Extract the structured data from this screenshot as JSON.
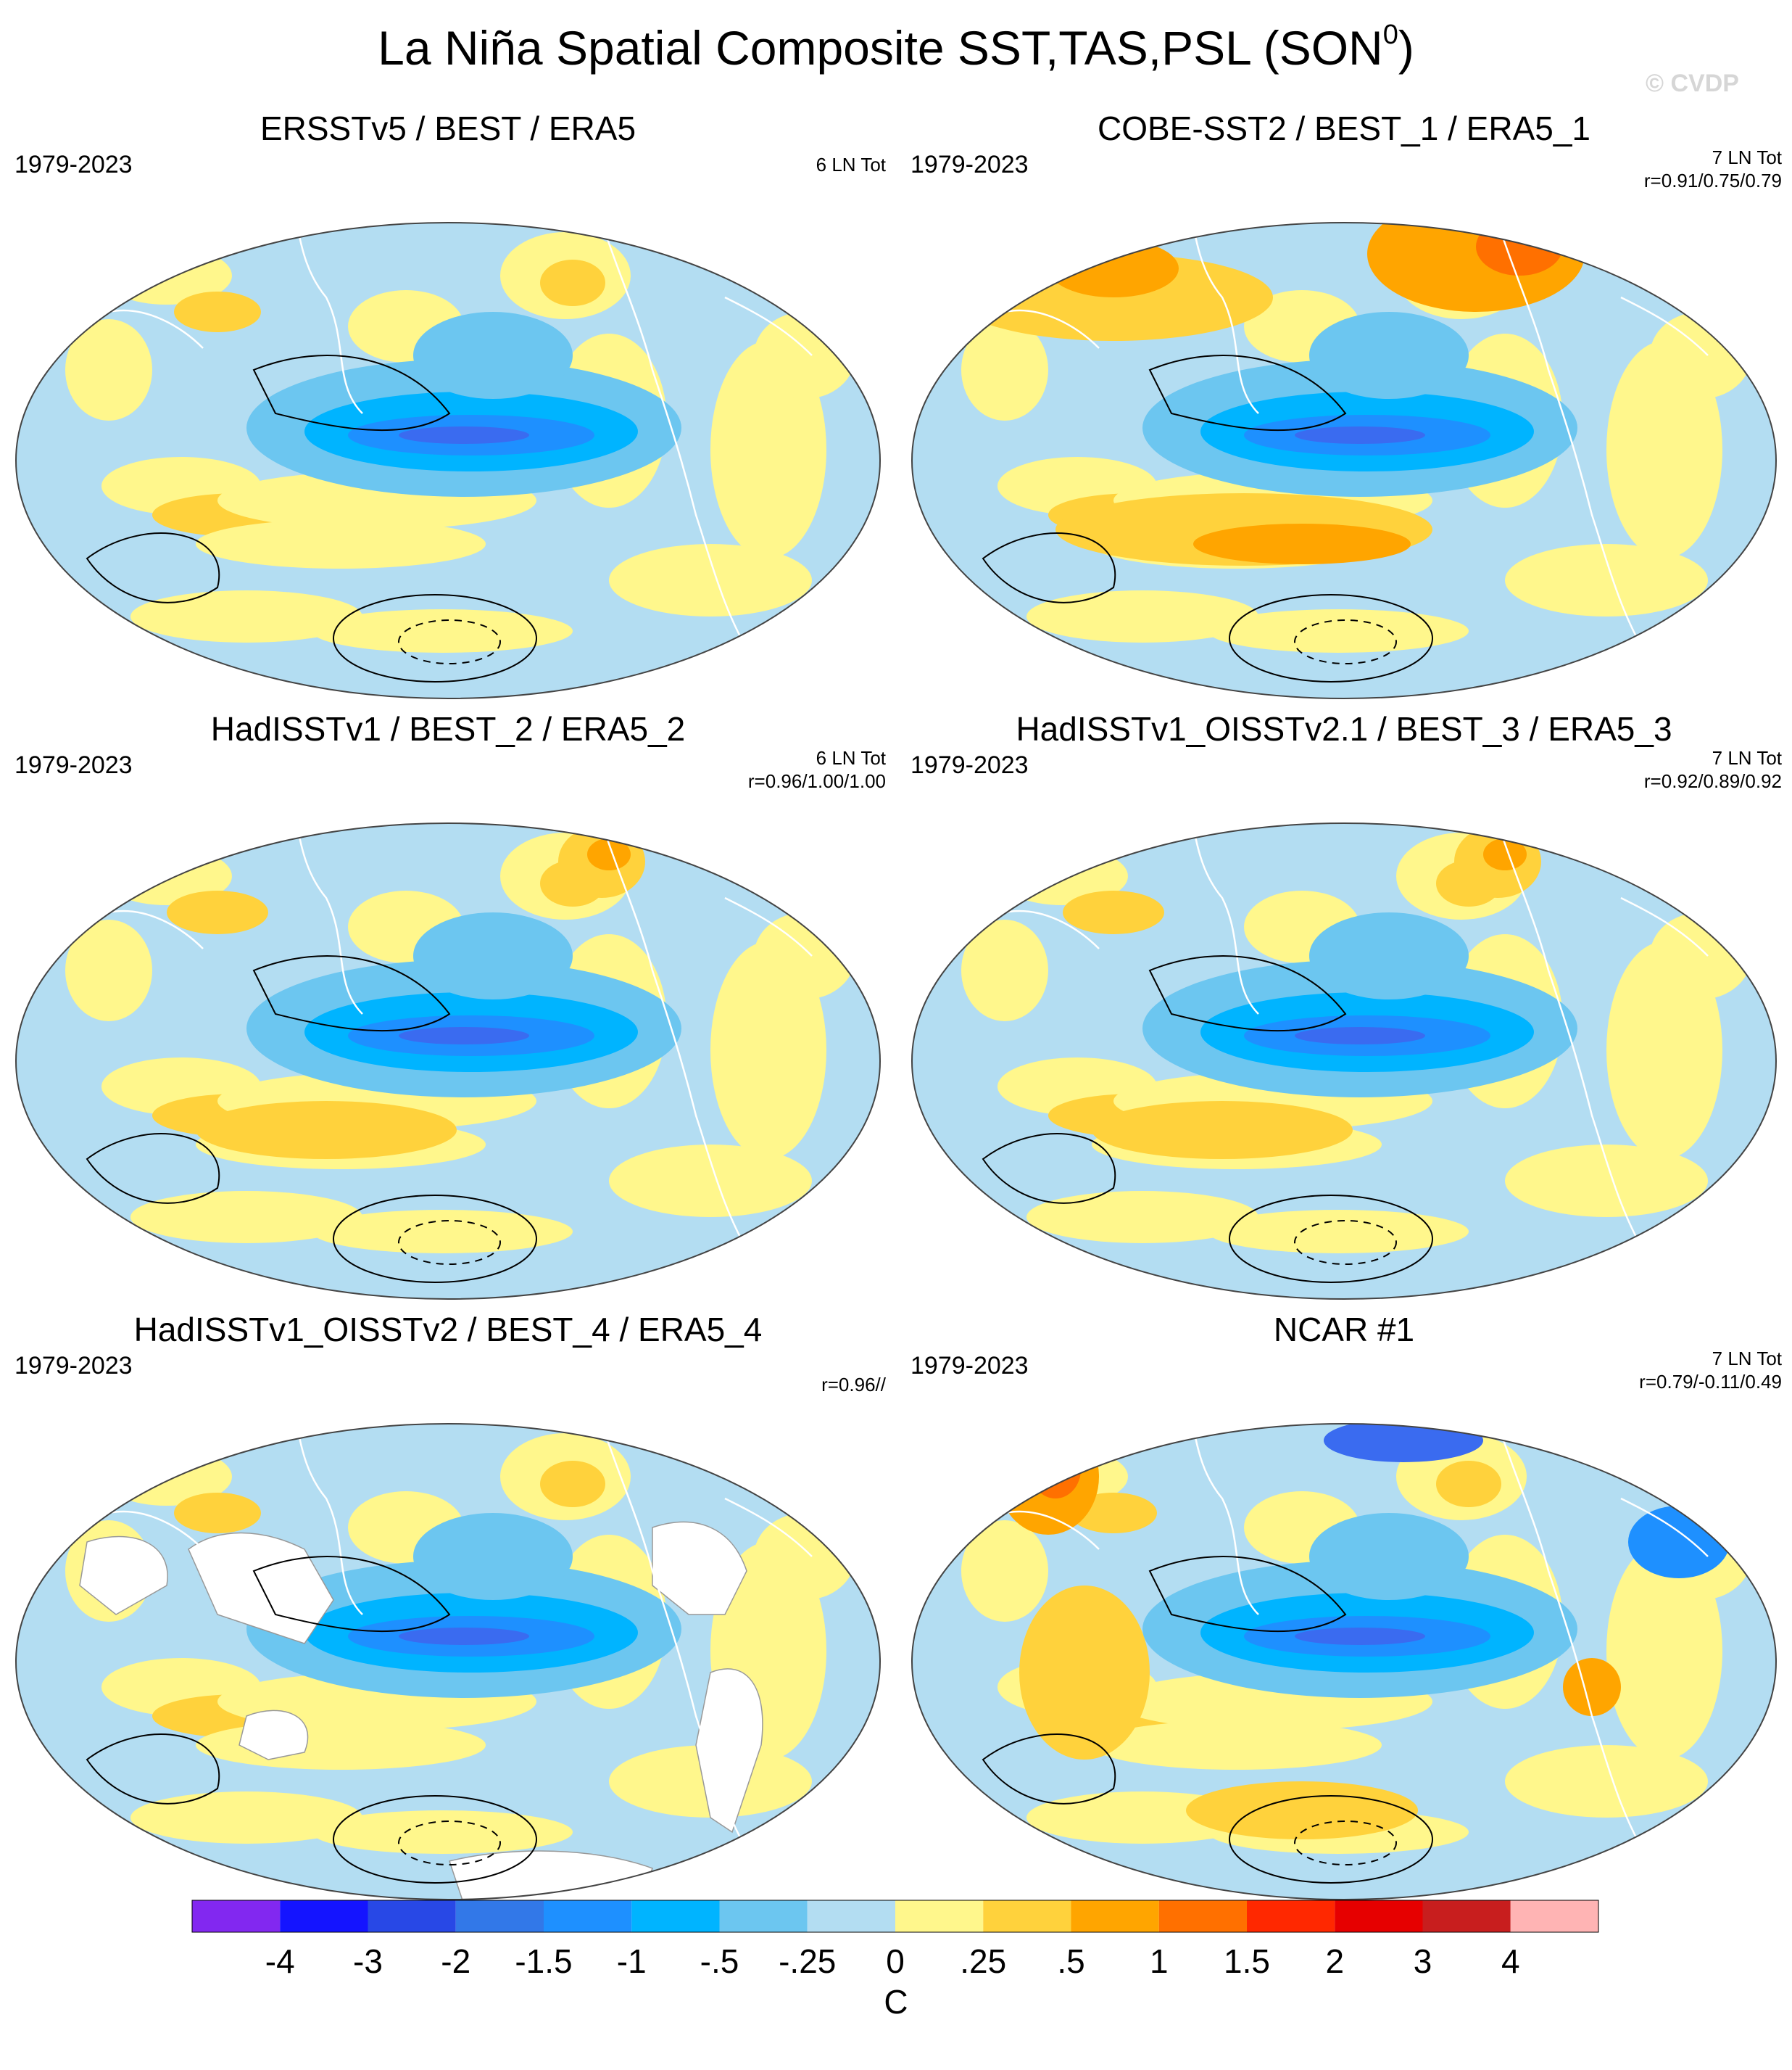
{
  "title": {
    "main": "La Niña Spatial Composite SST,TAS,PSL (SON",
    "sup": "0",
    "close": ")"
  },
  "watermark": "© CVDP",
  "panels": [
    {
      "title": "ERSSTv5 / BEST / ERA5",
      "period": "1979-2023",
      "count": "6 LN Tot",
      "corr": "",
      "land_masked": false
    },
    {
      "title": "COBE-SST2 / BEST_1 / ERA5_1",
      "period": "1979-2023",
      "count": "7 LN Tot",
      "corr": "r=0.91/0.75/0.79",
      "land_masked": false
    },
    {
      "title": "HadISSTv1 / BEST_2 / ERA5_2",
      "period": "1979-2023",
      "count": "6 LN Tot",
      "corr": "r=0.96/1.00/1.00",
      "land_masked": false
    },
    {
      "title": "HadISSTv1_OISSTv2.1 / BEST_3 / ERA5_3",
      "period": "1979-2023",
      "count": "7 LN Tot",
      "corr": "r=0.92/0.89/0.92",
      "land_masked": false
    },
    {
      "title": "HadISSTv1_OISSTv2 / BEST_4 / ERA5_4",
      "period": "1979-2023",
      "count": "",
      "corr": "r=0.96//",
      "land_masked": true
    },
    {
      "title": "NCAR #1",
      "period": "1979-2023",
      "count": "7 LN Tot",
      "corr": "r=0.79/-0.11/0.49",
      "land_masked": false
    }
  ],
  "colors": {
    "ocean_base": "#b3ddf2",
    "yellow": "#fff78c",
    "gold": "#ffd23c",
    "orange": "#ffa500",
    "deep_orange": "#ff7000",
    "light_blue": "#6cc6f0",
    "mid_blue": "#00b4ff",
    "blue": "#1e90ff",
    "dark_blue": "#3a6bf0",
    "navy": "#2d4ce6",
    "land": "#ffffff"
  },
  "chart_data": {
    "type": "colorbar",
    "unit": "C",
    "tick_labels": [
      "-4",
      "-3",
      "-2",
      "-1.5",
      "-1",
      "-.5",
      "-.25",
      "0",
      ".25",
      ".5",
      "1",
      "1.5",
      "2",
      "3",
      "4"
    ],
    "levels": [
      -4,
      -3,
      -2,
      -1.5,
      -1,
      -0.5,
      -0.25,
      0,
      0.25,
      0.5,
      1,
      1.5,
      2,
      3,
      4
    ],
    "colors": [
      "#8228f0",
      "#1414ff",
      "#2848e6",
      "#3278e8",
      "#1e90ff",
      "#00b4ff",
      "#6cc6f0",
      "#b3ddf2",
      "#fff78c",
      "#ffd23c",
      "#ffa500",
      "#ff7000",
      "#ff2800",
      "#e60000",
      "#c81e1e",
      "#ffb4b4"
    ]
  }
}
